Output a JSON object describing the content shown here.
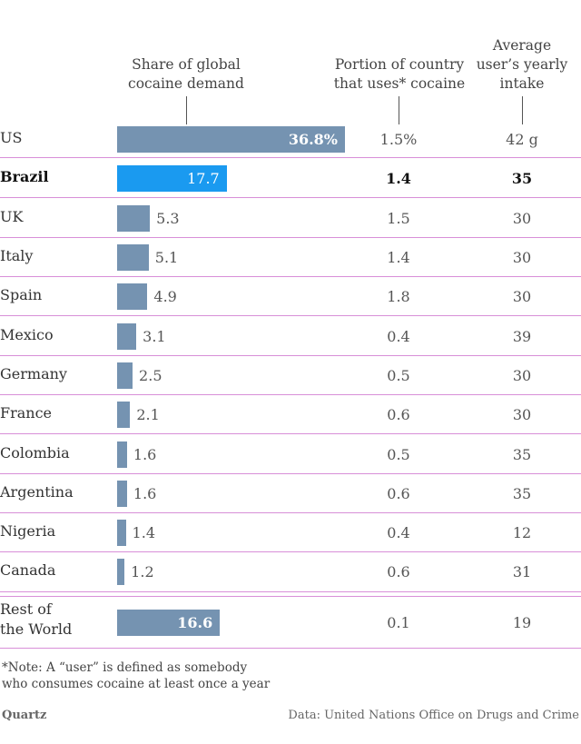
{
  "chart_data": {
    "type": "bar",
    "title": "",
    "columns": {
      "share": {
        "line1": "Share of global",
        "line2": "cocaine demand"
      },
      "portion": {
        "line1": "Portion of country",
        "line2": "that uses* cocaine"
      },
      "intake": {
        "line1": "Average",
        "line2": "user’s yearly",
        "line3": "intake"
      }
    },
    "xlim": [
      0,
      36.8
    ],
    "rows": [
      {
        "country": "US",
        "share": 36.8,
        "share_label": "36.8%",
        "portion": "1.5%",
        "intake": "42 g",
        "highlight": false
      },
      {
        "country": "Brazil",
        "share": 17.7,
        "share_label": "17.7",
        "portion": "1.4",
        "intake": "35",
        "highlight": true
      },
      {
        "country": "UK",
        "share": 5.3,
        "share_label": "5.3",
        "portion": "1.5",
        "intake": "30",
        "highlight": false
      },
      {
        "country": "Italy",
        "share": 5.1,
        "share_label": "5.1",
        "portion": "1.4",
        "intake": "30",
        "highlight": false
      },
      {
        "country": "Spain",
        "share": 4.9,
        "share_label": "4.9",
        "portion": "1.8",
        "intake": "30",
        "highlight": false
      },
      {
        "country": "Mexico",
        "share": 3.1,
        "share_label": "3.1",
        "portion": "0.4",
        "intake": "39",
        "highlight": false
      },
      {
        "country": "Germany",
        "share": 2.5,
        "share_label": "2.5",
        "portion": "0.5",
        "intake": "30",
        "highlight": false
      },
      {
        "country": "France",
        "share": 2.1,
        "share_label": "2.1",
        "portion": "0.6",
        "intake": "30",
        "highlight": false
      },
      {
        "country": "Colombia",
        "share": 1.6,
        "share_label": "1.6",
        "portion": "0.5",
        "intake": "35",
        "highlight": false
      },
      {
        "country": "Argentina",
        "share": 1.6,
        "share_label": "1.6",
        "portion": "0.6",
        "intake": "35",
        "highlight": false
      },
      {
        "country": "Nigeria",
        "share": 1.4,
        "share_label": "1.4",
        "portion": "0.4",
        "intake": "12",
        "highlight": false
      },
      {
        "country": "Canada",
        "share": 1.2,
        "share_label": "1.2",
        "portion": "0.6",
        "intake": "31",
        "highlight": false
      },
      {
        "country": "Rest of the World",
        "country_line1": "Rest of",
        "country_line2": "the World",
        "share": 16.6,
        "share_label": "16.6",
        "portion": "0.1",
        "intake": "19",
        "highlight": false
      }
    ],
    "colors": {
      "bar": "#7593b1",
      "highlight_bar": "#1a9af0",
      "separator": "#d88fd8"
    }
  },
  "note": {
    "line1": "*Note: A “user” is defined as somebody",
    "line2": "who consumes cocaine at least once a year"
  },
  "brand": "Quartz",
  "source": "Data: United Nations Office on Drugs and Crime"
}
